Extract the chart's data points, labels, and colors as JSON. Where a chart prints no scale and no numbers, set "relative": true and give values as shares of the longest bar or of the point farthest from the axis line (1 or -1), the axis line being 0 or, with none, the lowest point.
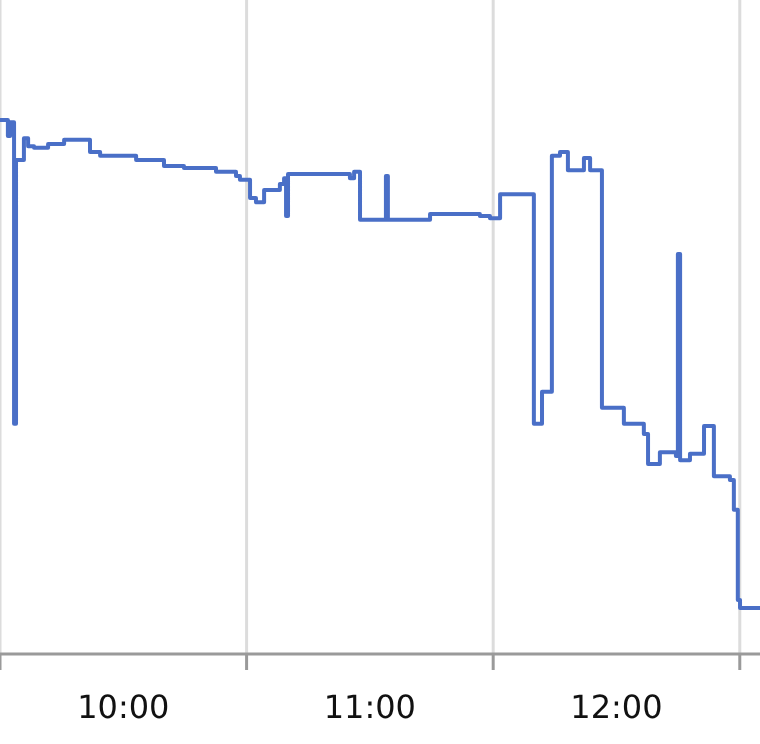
{
  "chart_data": {
    "type": "step",
    "relative": true,
    "grid": "x",
    "color": "#4a6fc7",
    "xlim": [
      9.5,
      12.582
    ],
    "xticks": [
      {
        "value": 9.5,
        "label": null
      },
      {
        "value": 10,
        "label": "10:00"
      },
      {
        "value": 10.5,
        "label": null
      },
      {
        "value": 11,
        "label": "11:00"
      },
      {
        "value": 11.5,
        "label": null
      },
      {
        "value": 12,
        "label": "12:00"
      },
      {
        "value": 12.5,
        "label": null
      }
    ],
    "x": [
      9.5,
      9.532,
      9.541,
      9.557,
      9.565,
      9.597,
      9.614,
      9.638,
      9.695,
      9.76,
      9.865,
      9.906,
      10.052,
      10.165,
      10.246,
      10.376,
      10.457,
      10.473,
      10.514,
      10.538,
      10.571,
      10.635,
      10.652,
      10.66,
      10.668,
      10.919,
      10.936,
      10.96,
      11.065,
      11.073,
      11.244,
      11.446,
      11.487,
      11.528,
      11.665,
      11.698,
      11.738,
      11.771,
      11.803,
      11.868,
      11.893,
      11.941,
      12.03,
      12.111,
      12.128,
      12.176,
      12.241,
      12.249,
      12.258,
      12.298,
      12.355,
      12.395,
      12.46,
      12.476,
      12.492,
      12.501,
      12.582
    ],
    "values": [
      1.0,
      0.97,
      0.996,
      0.431,
      0.925,
      0.966,
      0.951,
      0.948,
      0.955,
      0.963,
      0.94,
      0.933,
      0.925,
      0.914,
      0.91,
      0.903,
      0.895,
      0.888,
      0.854,
      0.846,
      0.869,
      0.88,
      0.891,
      0.82,
      0.899,
      0.891,
      0.903,
      0.813,
      0.895,
      0.813,
      0.824,
      0.82,
      0.816,
      0.861,
      0.431,
      0.491,
      0.933,
      0.94,
      0.906,
      0.929,
      0.906,
      0.461,
      0.431,
      0.412,
      0.356,
      0.378,
      0.371,
      0.749,
      0.363,
      0.375,
      0.427,
      0.333,
      0.326,
      0.27,
      0.101,
      0.086,
      0.086
    ]
  }
}
